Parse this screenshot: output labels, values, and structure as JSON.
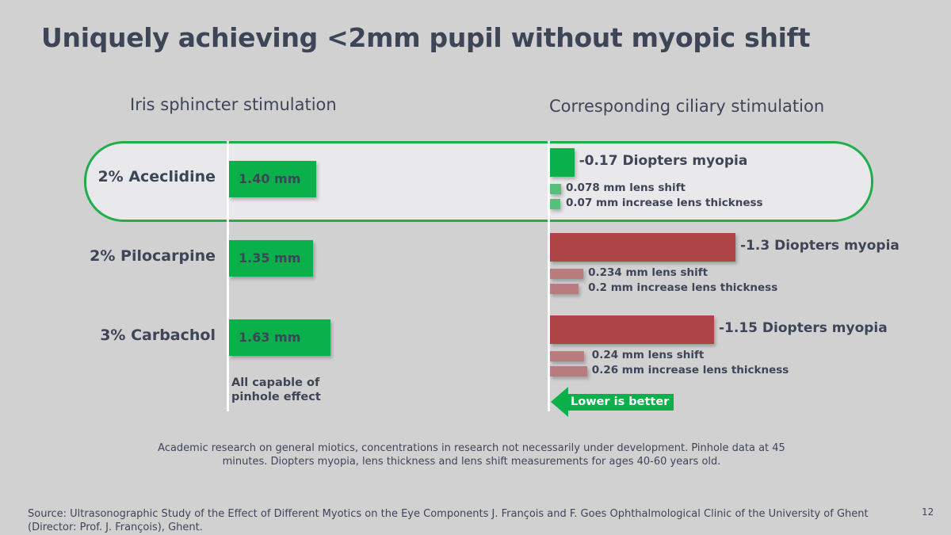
{
  "title": "Uniquely achieving <2mm pupil without myopic shift",
  "left_heading": "Iris sphincter stimulation",
  "right_heading": "Corresponding ciliary stimulation",
  "note": "All capable of pinhole effect",
  "arrow_label": "Lower is better",
  "footnote": "Academic research on general miotics, concentrations in research not necessarily under development. Pinhole data at 45 minutes. Diopters myopia, lens thickness and lens shift measurements for ages 40-60 years old.",
  "source": "Source: Ultrasonographic Study of the Effect of Different Myotics on the Eye Components J. François and F. Goes Ophthalmological Clinic of the University of Ghent (Director: Prof. J. François), Ghent.",
  "page_number": "12",
  "colors": {
    "green": "#0ab14b",
    "red": "#ad4446",
    "green_light": "#58be7c",
    "red_light": "#b97c7e",
    "text": "#3d4557",
    "background": "#d2d1d2"
  },
  "chart_data": [
    {
      "type": "bar",
      "orientation": "horizontal",
      "heading": "Iris sphincter stimulation",
      "categories": [
        "2% Aceclidine",
        "2% Pilocarpine",
        "3% Carbachol"
      ],
      "series": [
        {
          "values": [
            1.4,
            1.35,
            1.63
          ],
          "labels": [
            "1.40 mm",
            "1.35 mm",
            "1.63 mm"
          ],
          "color": "#0ab14b"
        }
      ],
      "highlighted_category": "2% Aceclidine"
    },
    {
      "type": "bar",
      "orientation": "horizontal",
      "heading": "Corresponding ciliary stimulation",
      "categories": [
        "2% Aceclidine",
        "2% Pilocarpine",
        "3% Carbachol"
      ],
      "series": [
        {
          "values": [
            -0.17,
            -1.3,
            -1.15
          ],
          "labels": [
            "-0.17 Diopters myopia",
            "-1.3 Diopters myopia",
            "-1.15 Diopters myopia"
          ],
          "colors": [
            "#0ab14b",
            "#ad4446",
            "#ad4446"
          ]
        },
        {
          "values": [
            0.078,
            0.234,
            0.24
          ],
          "labels": [
            "0.078 mm lens shift",
            "0.234 mm lens shift",
            "0.24 mm lens shift"
          ],
          "colors": [
            "#58be7c",
            "#b97c7e",
            "#b97c7e"
          ]
        },
        {
          "values": [
            0.07,
            0.2,
            0.26
          ],
          "labels": [
            "0.07 mm increase lens thickness",
            "0.2 mm increase lens thickness",
            "0.26 mm increase lens thickness"
          ],
          "colors": [
            "#58be7c",
            "#b97c7e",
            "#b97c7e"
          ]
        }
      ]
    }
  ]
}
